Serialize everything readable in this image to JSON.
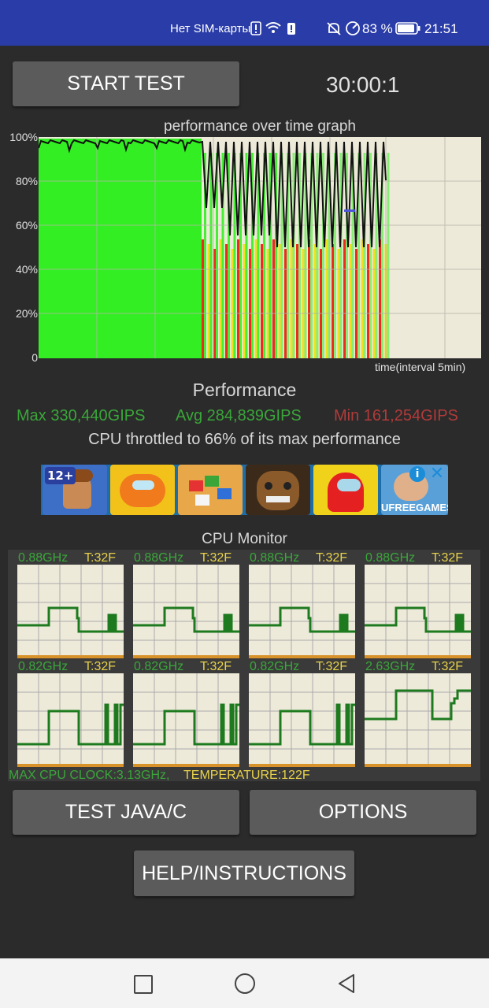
{
  "status_bar": {
    "carrier": "Нет SIM-карты",
    "battery": "83 %",
    "time": "21:51"
  },
  "toolbar": {
    "start_label": "START TEST",
    "timer": "30:00:1"
  },
  "graph": {
    "title": "performance over time graph",
    "y_ticks": [
      "100%",
      "80%",
      "60%",
      "40%",
      "20%",
      "0"
    ],
    "x_label": "time(interval 5min)"
  },
  "performance": {
    "title": "Performance",
    "max": "Max 330,440GIPS",
    "avg": "Avg 284,839GIPS",
    "min": "Min 161,254GIPS",
    "throttle": "CPU throttled to 66% of its max performance"
  },
  "ad": {
    "badge": "12+",
    "brand": "UFREEGAMES"
  },
  "cpu_monitor": {
    "title": "CPU Monitor",
    "cores": [
      {
        "freq": "0.88GHz",
        "temp": "T:32F"
      },
      {
        "freq": "0.88GHz",
        "temp": "T:32F"
      },
      {
        "freq": "0.88GHz",
        "temp": "T:32F"
      },
      {
        "freq": "0.88GHz",
        "temp": "T:32F"
      },
      {
        "freq": "0.82GHz",
        "temp": "T:32F"
      },
      {
        "freq": "0.82GHz",
        "temp": "T:32F"
      },
      {
        "freq": "0.82GHz",
        "temp": "T:32F"
      },
      {
        "freq": "2.63GHz",
        "temp": "T:32F"
      }
    ],
    "max_clock": "MAX CPU CLOCK:3.13GHz,",
    "temperature": "TEMPERATURE:122F"
  },
  "buttons": {
    "test_java": "TEST JAVA/C",
    "options": "OPTIONS",
    "help": "HELP/INSTRUCTIONS"
  },
  "colors": {
    "status_bar": "#2a3ca8",
    "max_green": "#3aa63a",
    "avg_green": "#3aa63a",
    "min_red": "#b23a3a",
    "graph_green": "#33ee22",
    "cpu_line": "#1e7a1e",
    "temp_yellow": "#e8d24a"
  }
}
